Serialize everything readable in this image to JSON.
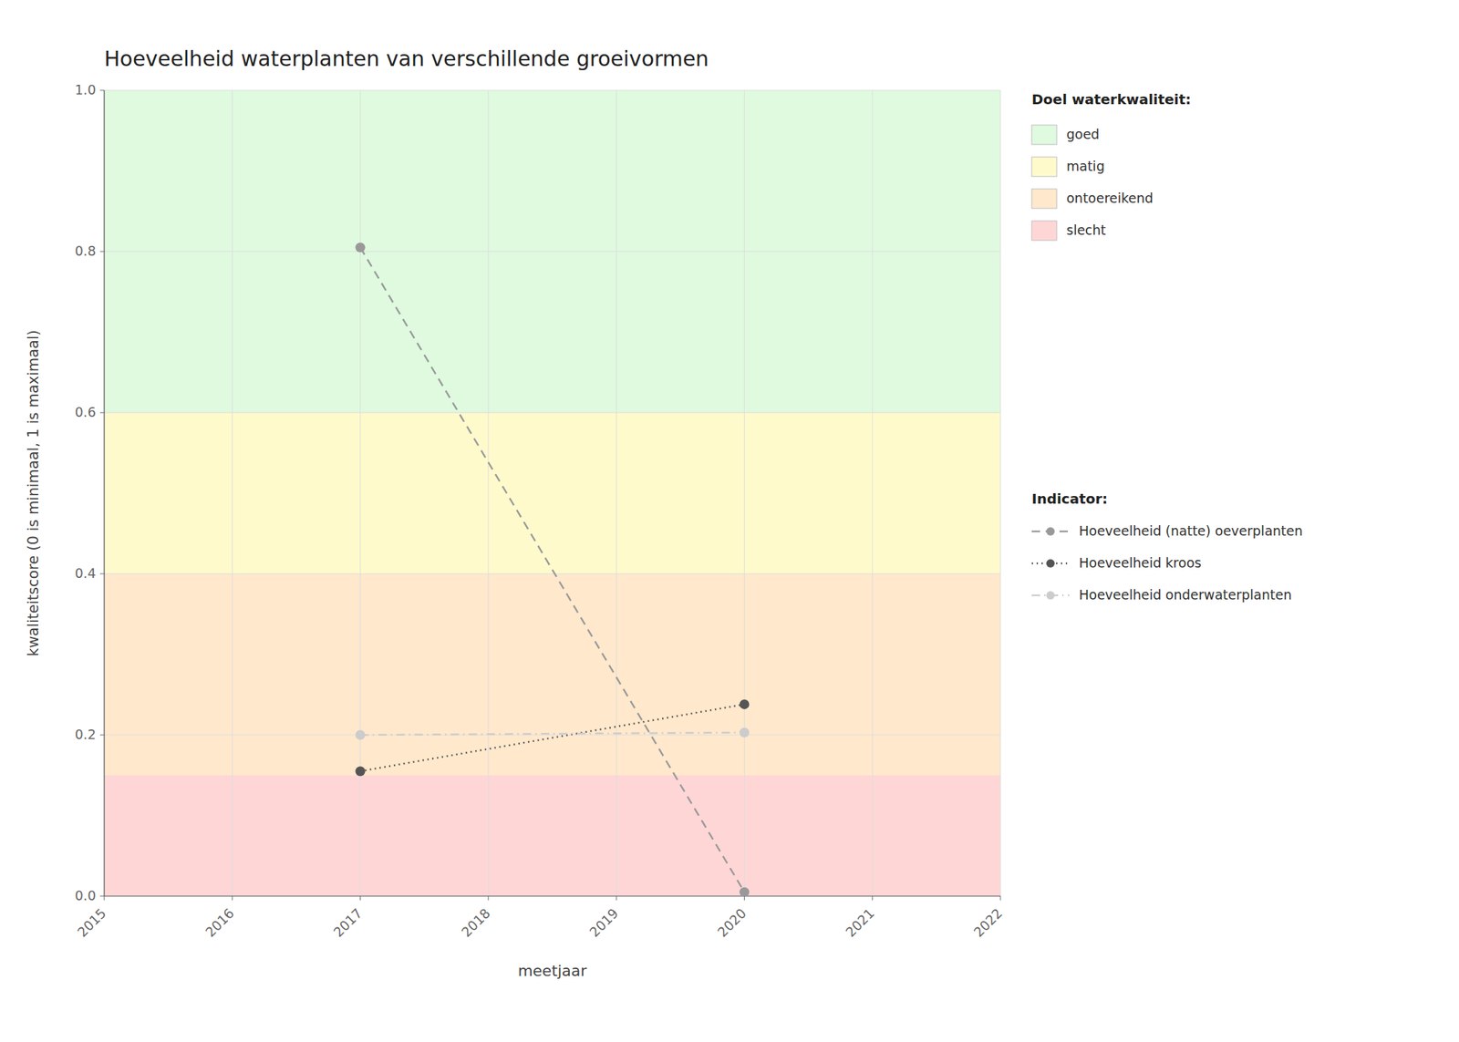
{
  "chart_data": {
    "type": "line",
    "title": "Hoeveelheid waterplanten van verschillende groeivormen",
    "x_label": "meetjaar",
    "y_label": "kwaliteitscore (0 is minimaal, 1 is maximaal)",
    "x": [
      2017,
      2020
    ],
    "xlim": [
      2015,
      2022
    ],
    "xticks": [
      2015,
      2016,
      2017,
      2018,
      2019,
      2020,
      2021,
      2022
    ],
    "ylim": [
      0.0,
      1.0
    ],
    "yticks": [
      {
        "value": 0.0,
        "label": "0.0"
      },
      0.2,
      0.4,
      0.6,
      0.8,
      {
        "value": 1.0,
        "label": "1.0"
      }
    ],
    "grid": true,
    "legend": "right",
    "band_legend_title": "Doel waterkwaliteit:",
    "series_legend_title": "Indicator:",
    "bands": [
      {
        "name": "slecht",
        "ymin": 0.0,
        "ymax": 0.15,
        "color": "#FFD6D6"
      },
      {
        "name": "ontoereikend",
        "ymin": 0.15,
        "ymax": 0.4,
        "color": "#FFE8CC"
      },
      {
        "name": "matig",
        "ymin": 0.4,
        "ymax": 0.6,
        "color": "#FFFACC"
      },
      {
        "name": "goed",
        "ymin": 0.6,
        "ymax": 1.0,
        "color": "#DFFADF"
      }
    ],
    "series": [
      {
        "name": "Hoeveelheid (natte) oeverplanten",
        "color": "#999999",
        "line_style": "dashed",
        "marker": "circle",
        "values": [
          0.805,
          0.005
        ]
      },
      {
        "name": "Hoeveelheid kroos",
        "color": "#555555",
        "line_style": "dotted",
        "marker": "circle",
        "values": [
          0.155,
          0.238
        ]
      },
      {
        "name": "Hoeveelheid onderwaterplanten",
        "color": "#CCCCCC",
        "line_style": "dashdot",
        "marker": "circle",
        "values": [
          0.2,
          0.203
        ]
      }
    ]
  }
}
